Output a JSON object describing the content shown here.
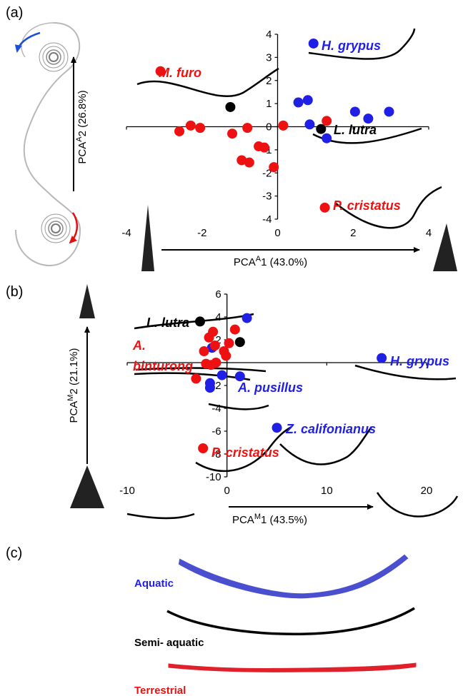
{
  "panel_labels": [
    "(a)",
    "(b)",
    "(c)"
  ],
  "colors": {
    "aquatic": "#1f1fe6",
    "semi_aquatic": "#000000",
    "terrestrial": "#ee1111",
    "aquatic_shape": "#4a4fd0",
    "terrestrial_shape": "#e0202a"
  },
  "chart_data": [
    {
      "type": "scatter",
      "panel": "(a)",
      "xlabel": "PCA",
      "xlabel_sup": "A",
      "xlabel_rest": "1 (43.0%)",
      "ylabel": "PCA",
      "ylabel_sup": "A",
      "ylabel_rest": "2 (26.8%)",
      "xlim": [
        -4,
        4
      ],
      "ylim": [
        -4,
        4
      ],
      "x_ticks": [
        "-4",
        "-2",
        "0",
        "2",
        "4"
      ],
      "y_ticks": [
        "4",
        "3",
        "2",
        "1",
        "0",
        "-1",
        "-2",
        "-3",
        "-4"
      ],
      "series": [
        {
          "group": "aquatic",
          "points": [
            [
              0.95,
              3.6
            ],
            [
              0.55,
              1.05
            ],
            [
              0.8,
              1.15
            ],
            [
              0.85,
              0.1
            ],
            [
              1.3,
              -0.5
            ],
            [
              2.05,
              0.65
            ],
            [
              2.4,
              0.35
            ],
            [
              2.95,
              0.65
            ]
          ]
        },
        {
          "group": "semi_aquatic",
          "points": [
            [
              -1.25,
              0.85
            ],
            [
              1.15,
              -0.1
            ]
          ]
        },
        {
          "group": "terrestrial",
          "points": [
            [
              -3.1,
              2.4
            ],
            [
              -2.6,
              -0.2
            ],
            [
              -2.3,
              0.05
            ],
            [
              -2.05,
              -0.05
            ],
            [
              -1.2,
              -0.3
            ],
            [
              -0.8,
              -0.05
            ],
            [
              -0.95,
              -1.45
            ],
            [
              -0.75,
              -1.55
            ],
            [
              -0.5,
              -0.85
            ],
            [
              -0.35,
              -0.9
            ],
            [
              -0.1,
              -1.75
            ],
            [
              0.15,
              0.05
            ],
            [
              1.3,
              0.25
            ],
            [
              1.25,
              -3.5
            ]
          ]
        }
      ],
      "annotations": [
        {
          "text": "M. furo",
          "group": "terrestrial"
        },
        {
          "text": "H. grypus",
          "group": "aquatic"
        },
        {
          "text": "L. lutra",
          "group": "semi_aquatic"
        },
        {
          "text": "P. cristatus",
          "group": "terrestrial"
        }
      ]
    },
    {
      "type": "scatter",
      "panel": "(b)",
      "xlabel": "PCA",
      "xlabel_sup": "M",
      "xlabel_rest": "1 (43.5%)",
      "ylabel": "PCA",
      "ylabel_sup": "M",
      "ylabel_rest": "2 (21.1%)",
      "xlim": [
        -10,
        20
      ],
      "ylim": [
        -10,
        6
      ],
      "x_ticks": [
        "-10",
        "0",
        "10",
        "20"
      ],
      "y_ticks": [
        "6",
        "4",
        "2",
        "0",
        "-2",
        "-4",
        "-6",
        "-8",
        "-10"
      ],
      "series": [
        {
          "group": "aquatic",
          "points": [
            [
              2.0,
              3.9
            ],
            [
              -1.5,
              1.3
            ],
            [
              -0.5,
              -1.1
            ],
            [
              1.3,
              -1.2
            ],
            [
              -1.7,
              -1.8
            ],
            [
              -1.7,
              -2.2
            ],
            [
              5.0,
              -5.7
            ],
            [
              15.5,
              0.4
            ]
          ]
        },
        {
          "group": "semi_aquatic",
          "points": [
            [
              -2.7,
              3.6
            ],
            [
              1.3,
              1.8
            ]
          ]
        },
        {
          "group": "terrestrial",
          "points": [
            [
              -1.8,
              2.2
            ],
            [
              -1.4,
              2.7
            ],
            [
              -2.3,
              1.0
            ],
            [
              -1.2,
              1.5
            ],
            [
              -0.3,
              1.0
            ],
            [
              0.2,
              1.7
            ],
            [
              0.8,
              2.9
            ],
            [
              -0.1,
              0.6
            ],
            [
              -2.1,
              -0.1
            ],
            [
              -1.6,
              -0.2
            ],
            [
              -1.1,
              0.0
            ],
            [
              -3.1,
              -1.4
            ],
            [
              -2.4,
              -7.5
            ]
          ]
        }
      ],
      "annotations": [
        {
          "text": "L. lutra",
          "group": "semi_aquatic"
        },
        {
          "text": "A.",
          "group": "terrestrial"
        },
        {
          "text": "binturong",
          "group": "terrestrial"
        },
        {
          "text": "A. pusillus",
          "group": "aquatic"
        },
        {
          "text": "H. grypus",
          "group": "aquatic"
        },
        {
          "text": "Z. califonianus",
          "group": "aquatic"
        },
        {
          "text": "P. cristatus",
          "group": "terrestrial"
        }
      ]
    }
  ],
  "legend": {
    "aquatic": "Aquatic",
    "semi_aquatic": "Semi- aquatic",
    "terrestrial": "Terrestrial"
  }
}
